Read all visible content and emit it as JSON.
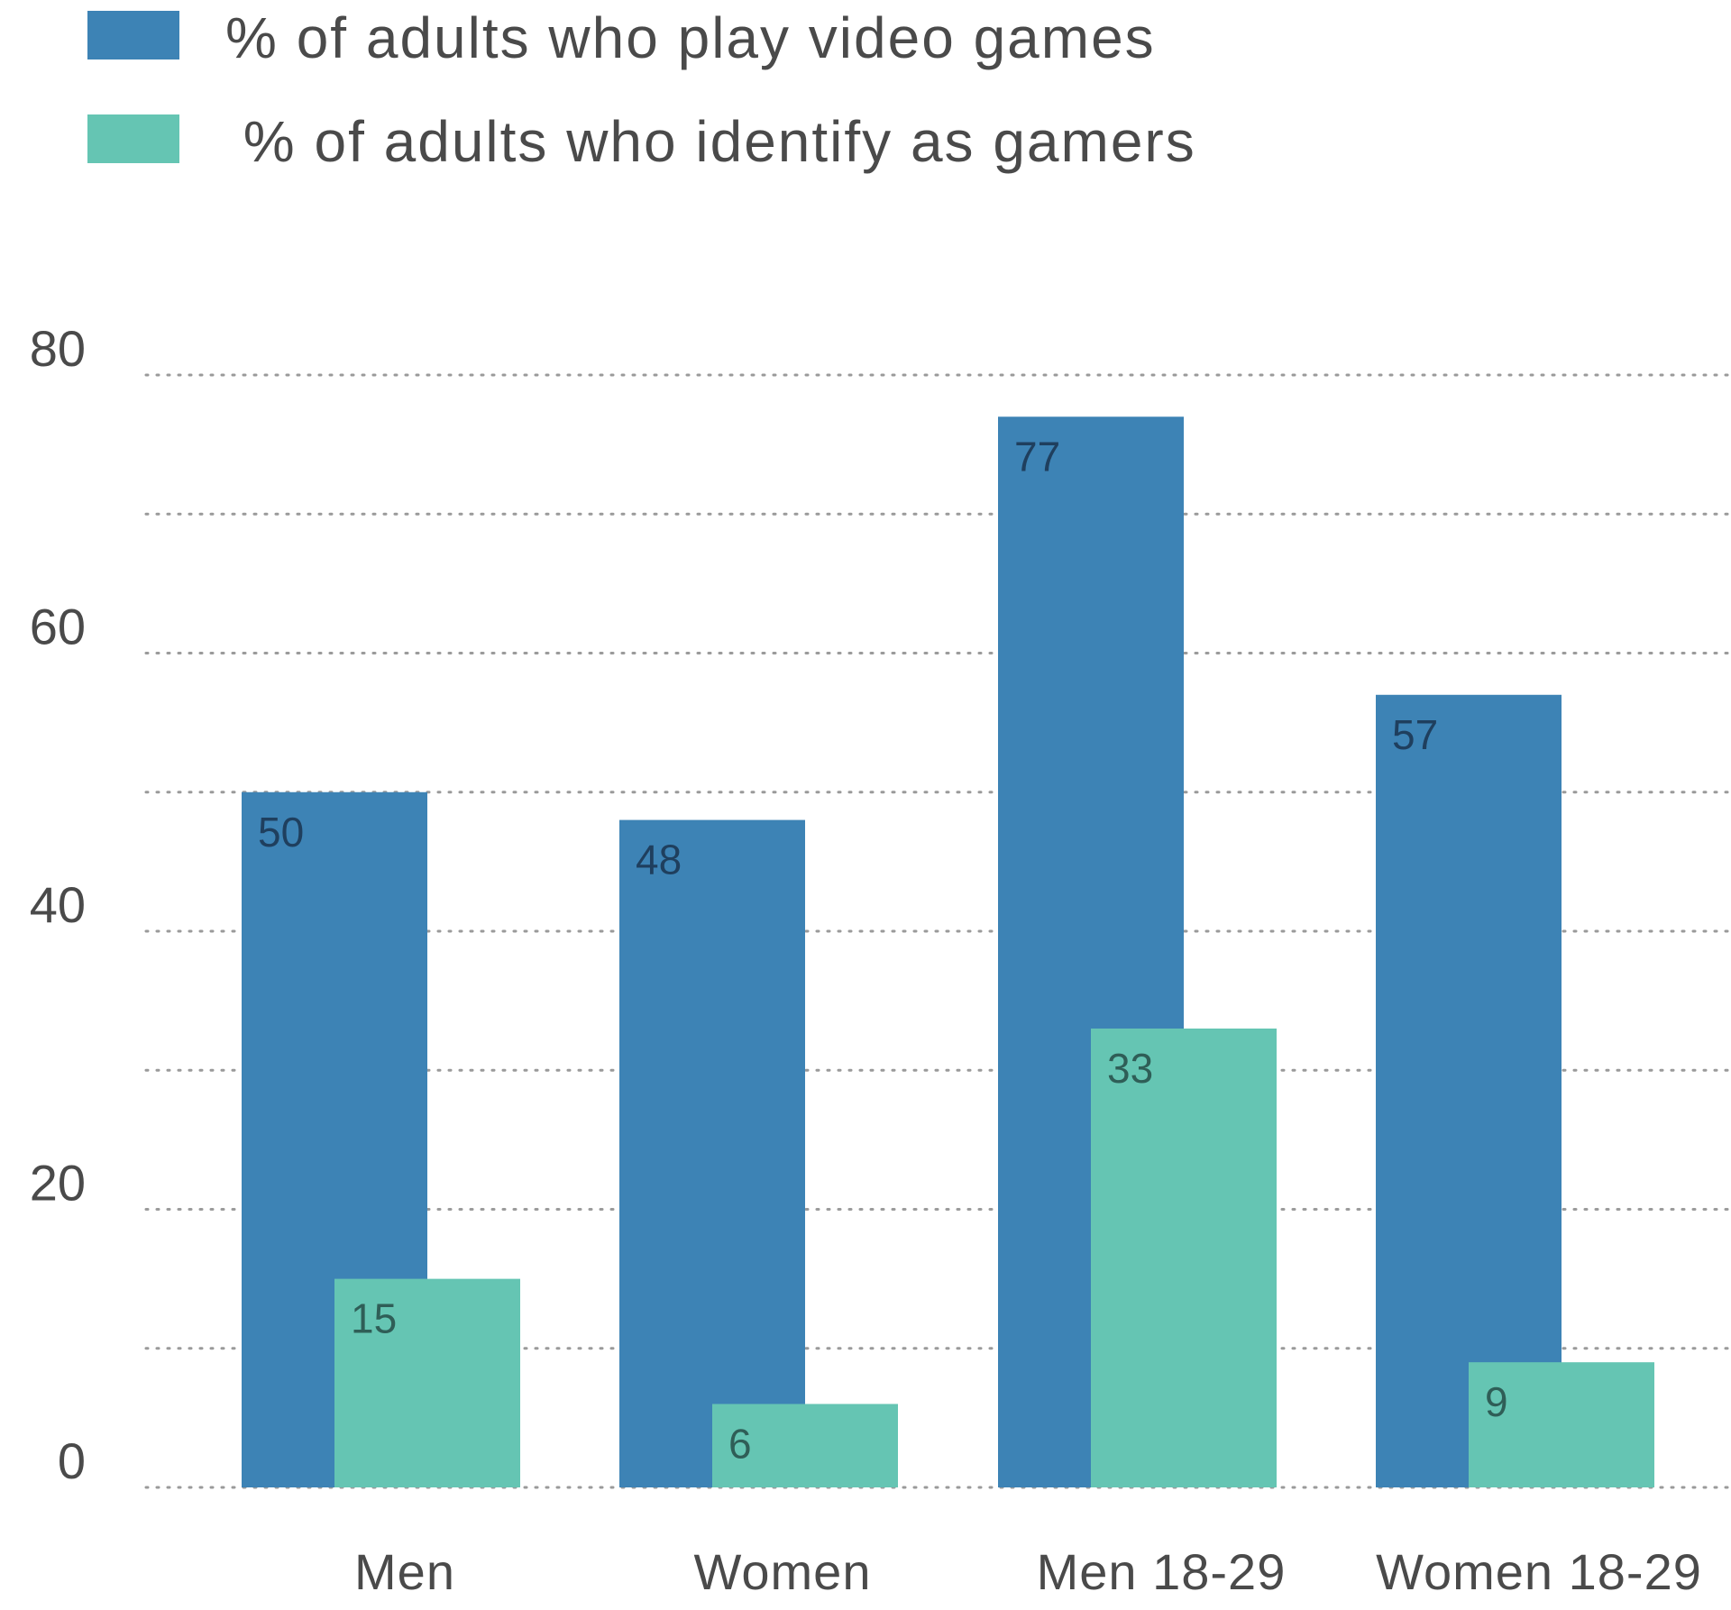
{
  "colors": {
    "series_a": "#3d83b5",
    "series_b": "#65c5b3",
    "label_a": "#1f3f5e",
    "label_b": "#2f5e57",
    "grid": "#9a9a9a",
    "text": "#4a4a4a"
  },
  "legend": [
    {
      "label": "% of adults who play video games",
      "color_key": "series_a"
    },
    {
      "label": " % of adults who identify as gamers",
      "color_key": "series_b"
    }
  ],
  "chart_data": {
    "type": "bar",
    "categories": [
      "Men",
      "Women",
      "Men 18-29",
      "Women 18-29"
    ],
    "series": [
      {
        "name": "% of adults who play video games",
        "values": [
          50,
          48,
          77,
          57
        ]
      },
      {
        "name": "% of adults who identify as gamers",
        "values": [
          15,
          6,
          33,
          9
        ]
      }
    ],
    "yticks": [
      "0",
      "20",
      "40",
      "60",
      "80"
    ],
    "ylim": [
      0,
      80
    ],
    "grid": true,
    "grid_style": "dotted",
    "legend_position": "top-left",
    "title": "",
    "xlabel": "",
    "ylabel": ""
  }
}
